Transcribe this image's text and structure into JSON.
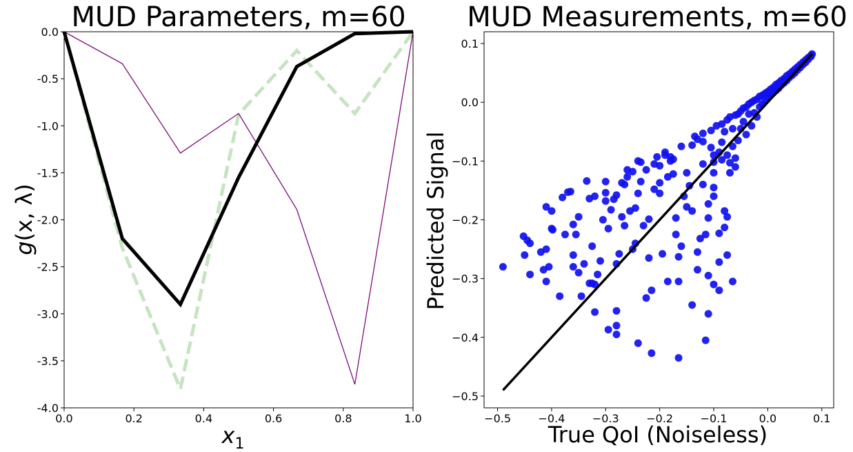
{
  "chart_data": [
    {
      "type": "line",
      "title": "MUD Parameters, m=60",
      "xlabel": "x",
      "xlabel_sub": "1",
      "ylabel_func": "g",
      "ylabel_args": "(x, λ)",
      "xlim": [
        0.0,
        1.0
      ],
      "ylim": [
        -4.0,
        0.0
      ],
      "xticks": [
        "0.0",
        "0.2",
        "0.4",
        "0.6",
        "0.8",
        "1.0"
      ],
      "yticks": [
        "0.0",
        "-0.5",
        "-1.0",
        "-1.5",
        "-2.0",
        "-2.5",
        "-3.0",
        "-3.5",
        "-4.0"
      ],
      "x": [
        0.0,
        0.1667,
        0.3333,
        0.5,
        0.6667,
        0.8333,
        1.0
      ],
      "series": [
        {
          "values": [
            0.0,
            -2.3,
            -3.8,
            -0.88,
            -0.2,
            -0.87,
            0.0
          ],
          "color": "#c7e3c2",
          "style": "dashed"
        },
        {
          "values": [
            0.0,
            -0.34,
            -1.29,
            -0.87,
            -1.89,
            -3.75,
            0.0
          ],
          "color": "#7b0a7b",
          "style": "solid-thin"
        },
        {
          "values": [
            0.0,
            -2.2,
            -2.9,
            -1.55,
            -0.37,
            -0.02,
            0.0
          ],
          "color": "#000000",
          "style": "solid-thick"
        }
      ]
    },
    {
      "type": "scatter",
      "title": "MUD Measurements, m=60",
      "xlabel": "True QoI (Noiseless)",
      "ylabel": "Predicted Signal",
      "xlim": [
        -0.525,
        0.122
      ],
      "ylim": [
        -0.52,
        0.12
      ],
      "xticks": [
        -0.5,
        -0.4,
        -0.3,
        -0.2,
        -0.1,
        0.0,
        0.1
      ],
      "xtick_labels": [
        "−0.5",
        "−0.4",
        "−0.3",
        "−0.2",
        "−0.1",
        "0.0",
        "0.1"
      ],
      "yticks": [
        -0.5,
        -0.4,
        -0.3,
        -0.2,
        -0.1,
        0.0,
        0.1
      ],
      "ytick_labels": [
        "−0.5",
        "−0.4",
        "−0.3",
        "−0.2",
        "−0.1",
        "0.0",
        "0.1"
      ],
      "point_color": "#1010f0",
      "line_color": "#000000",
      "identity_line": {
        "x": [
          -0.49,
          0.082
        ],
        "y": [
          -0.49,
          0.082
        ]
      },
      "points": [
        [
          -0.49,
          -0.28
        ],
        [
          -0.452,
          -0.228
        ],
        [
          -0.445,
          -0.235
        ],
        [
          -0.44,
          -0.24
        ],
        [
          -0.45,
          -0.26
        ],
        [
          -0.44,
          -0.293
        ],
        [
          -0.42,
          -0.255
        ],
        [
          -0.415,
          -0.285
        ],
        [
          -0.41,
          -0.305
        ],
        [
          -0.405,
          -0.28
        ],
        [
          -0.41,
          -0.25
        ],
        [
          -0.41,
          -0.178
        ],
        [
          -0.4,
          -0.185
        ],
        [
          -0.4,
          -0.215
        ],
        [
          -0.398,
          -0.217
        ],
        [
          -0.385,
          -0.33
        ],
        [
          -0.38,
          -0.162
        ],
        [
          -0.375,
          -0.225
        ],
        [
          -0.37,
          -0.153
        ],
        [
          -0.365,
          -0.152
        ],
        [
          -0.36,
          -0.26
        ],
        [
          -0.36,
          -0.28
        ],
        [
          -0.36,
          -0.208
        ],
        [
          -0.355,
          -0.225
        ],
        [
          -0.35,
          -0.195
        ],
        [
          -0.35,
          -0.29
        ],
        [
          -0.345,
          -0.33
        ],
        [
          -0.34,
          -0.275
        ],
        [
          -0.335,
          -0.134
        ],
        [
          -0.33,
          -0.308
        ],
        [
          -0.33,
          -0.164
        ],
        [
          -0.325,
          -0.308
        ],
        [
          -0.325,
          -0.245
        ],
        [
          -0.32,
          -0.16
        ],
        [
          -0.32,
          -0.357
        ],
        [
          -0.32,
          -0.31
        ],
        [
          -0.315,
          -0.293
        ],
        [
          -0.31,
          -0.27
        ],
        [
          -0.305,
          -0.2
        ],
        [
          -0.3,
          -0.154
        ],
        [
          -0.3,
          -0.168
        ],
        [
          -0.3,
          -0.135
        ],
        [
          -0.295,
          -0.215
        ],
        [
          -0.295,
          -0.387
        ],
        [
          -0.29,
          -0.183
        ],
        [
          -0.285,
          -0.165
        ],
        [
          -0.28,
          -0.158
        ],
        [
          -0.28,
          -0.38
        ],
        [
          -0.28,
          -0.395
        ],
        [
          -0.28,
          -0.355
        ],
        [
          -0.28,
          -0.275
        ],
        [
          -0.275,
          -0.258
        ],
        [
          -0.27,
          -0.137
        ],
        [
          -0.27,
          -0.195
        ],
        [
          -0.265,
          -0.14
        ],
        [
          -0.265,
          -0.21
        ],
        [
          -0.26,
          -0.127
        ],
        [
          -0.26,
          -0.115
        ],
        [
          -0.255,
          -0.185
        ],
        [
          -0.25,
          -0.118
        ],
        [
          -0.25,
          -0.25
        ],
        [
          -0.245,
          -0.18
        ],
        [
          -0.245,
          -0.24
        ],
        [
          -0.24,
          -0.41
        ],
        [
          -0.24,
          -0.155
        ],
        [
          -0.24,
          -0.1
        ],
        [
          -0.235,
          -0.102
        ],
        [
          -0.235,
          -0.135
        ],
        [
          -0.23,
          -0.21
        ],
        [
          -0.225,
          -0.333
        ],
        [
          -0.225,
          -0.115
        ],
        [
          -0.22,
          -0.265
        ],
        [
          -0.22,
          -0.199
        ],
        [
          -0.215,
          -0.427
        ],
        [
          -0.215,
          -0.32
        ],
        [
          -0.21,
          -0.148
        ],
        [
          -0.21,
          -0.105
        ],
        [
          -0.205,
          -0.093
        ],
        [
          -0.2,
          -0.137
        ],
        [
          -0.2,
          -0.108
        ],
        [
          -0.2,
          -0.155
        ],
        [
          -0.195,
          -0.258
        ],
        [
          -0.19,
          -0.085
        ],
        [
          -0.19,
          -0.09
        ],
        [
          -0.185,
          -0.127
        ],
        [
          -0.185,
          -0.305
        ],
        [
          -0.18,
          -0.1
        ],
        [
          -0.18,
          -0.093
        ],
        [
          -0.175,
          -0.097
        ],
        [
          -0.175,
          -0.122
        ],
        [
          -0.17,
          -0.197
        ],
        [
          -0.17,
          -0.225
        ],
        [
          -0.165,
          -0.435
        ],
        [
          -0.165,
          -0.263
        ],
        [
          -0.165,
          -0.305
        ],
        [
          -0.16,
          -0.245
        ],
        [
          -0.16,
          -0.075
        ],
        [
          -0.155,
          -0.16
        ],
        [
          -0.15,
          -0.178
        ],
        [
          -0.15,
          -0.12
        ],
        [
          -0.145,
          -0.142
        ],
        [
          -0.14,
          -0.073
        ],
        [
          -0.14,
          -0.185
        ],
        [
          -0.14,
          -0.345
        ],
        [
          -0.135,
          -0.058
        ],
        [
          -0.13,
          -0.285
        ],
        [
          -0.13,
          -0.255
        ],
        [
          -0.13,
          -0.063
        ],
        [
          -0.125,
          -0.232
        ],
        [
          -0.12,
          -0.105
        ],
        [
          -0.12,
          -0.14
        ],
        [
          -0.12,
          -0.067
        ],
        [
          -0.12,
          -0.053
        ],
        [
          -0.115,
          -0.405
        ],
        [
          -0.115,
          -0.225
        ],
        [
          -0.11,
          -0.173
        ],
        [
          -0.11,
          -0.295
        ],
        [
          -0.11,
          -0.36
        ],
        [
          -0.11,
          -0.197
        ],
        [
          -0.105,
          -0.077
        ],
        [
          -0.105,
          -0.048
        ],
        [
          -0.1,
          -0.31
        ],
        [
          -0.1,
          -0.09
        ],
        [
          -0.1,
          -0.145
        ],
        [
          -0.1,
          -0.16
        ],
        [
          -0.1,
          -0.12
        ],
        [
          -0.1,
          -0.102
        ],
        [
          -0.095,
          -0.04
        ],
        [
          -0.09,
          -0.32
        ],
        [
          -0.09,
          -0.272
        ],
        [
          -0.09,
          -0.223
        ],
        [
          -0.09,
          -0.085
        ],
        [
          -0.085,
          -0.037
        ],
        [
          -0.085,
          -0.098
        ],
        [
          -0.085,
          -0.068
        ],
        [
          -0.08,
          -0.213
        ],
        [
          -0.08,
          -0.185
        ],
        [
          -0.08,
          -0.05
        ],
        [
          -0.075,
          -0.03
        ],
        [
          -0.075,
          -0.195
        ],
        [
          -0.075,
          -0.26
        ],
        [
          -0.075,
          -0.09
        ],
        [
          -0.07,
          -0.12
        ],
        [
          -0.07,
          -0.103
        ],
        [
          -0.07,
          -0.025
        ],
        [
          -0.065,
          -0.305
        ],
        [
          -0.065,
          -0.075
        ],
        [
          -0.065,
          -0.045
        ],
        [
          -0.06,
          -0.022
        ],
        [
          -0.06,
          -0.095
        ],
        [
          -0.06,
          -0.11
        ],
        [
          -0.055,
          -0.02
        ],
        [
          -0.055,
          -0.065
        ],
        [
          -0.05,
          -0.015
        ],
        [
          -0.05,
          -0.045
        ],
        [
          -0.045,
          -0.01
        ],
        [
          -0.045,
          -0.033
        ],
        [
          -0.04,
          -0.008
        ],
        [
          -0.04,
          -0.055
        ],
        [
          -0.035,
          -0.003
        ],
        [
          -0.035,
          -0.02
        ],
        [
          -0.03,
          0.0
        ],
        [
          -0.03,
          -0.04
        ],
        [
          -0.025,
          0.003
        ],
        [
          -0.025,
          -0.018
        ],
        [
          -0.02,
          0.005
        ],
        [
          -0.02,
          -0.025
        ],
        [
          -0.015,
          0.01
        ],
        [
          -0.015,
          -0.008
        ],
        [
          -0.01,
          0.012
        ],
        [
          -0.01,
          -0.003
        ],
        [
          -0.005,
          0.015
        ],
        [
          -0.005,
          0.002
        ],
        [
          0.0,
          0.018
        ],
        [
          0.0,
          0.008
        ],
        [
          0.005,
          0.022
        ],
        [
          0.005,
          0.012
        ],
        [
          0.01,
          0.025
        ],
        [
          0.01,
          0.016
        ],
        [
          0.015,
          0.03
        ],
        [
          0.015,
          0.02
        ],
        [
          0.02,
          0.033
        ],
        [
          0.02,
          0.024
        ],
        [
          0.025,
          0.037
        ],
        [
          0.025,
          0.029
        ],
        [
          0.03,
          0.04
        ],
        [
          0.03,
          0.033
        ],
        [
          0.035,
          0.045
        ],
        [
          0.035,
          0.037
        ],
        [
          0.04,
          0.048
        ],
        [
          0.04,
          0.042
        ],
        [
          0.045,
          0.052
        ],
        [
          0.045,
          0.046
        ],
        [
          0.05,
          0.056
        ],
        [
          0.05,
          0.05
        ],
        [
          0.055,
          0.06
        ],
        [
          0.055,
          0.055
        ],
        [
          0.06,
          0.064
        ],
        [
          0.06,
          0.059
        ],
        [
          0.065,
          0.068
        ],
        [
          0.065,
          0.064
        ],
        [
          0.07,
          0.072
        ],
        [
          0.07,
          0.068
        ],
        [
          0.075,
          0.076
        ],
        [
          0.075,
          0.073
        ],
        [
          0.08,
          0.08
        ],
        [
          0.08,
          0.078
        ],
        [
          0.082,
          0.082
        ]
      ]
    }
  ]
}
